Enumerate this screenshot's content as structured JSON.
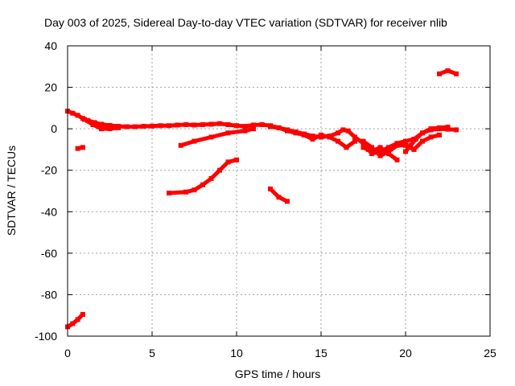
{
  "chart_data": {
    "type": "scatter",
    "title": "Day 003 of 2025, Sidereal Day-to-day VTEC variation (SDTVAR) for receiver nlib",
    "xlabel": "GPS time / hours",
    "ylabel": "SDTVAR / TECUs",
    "xlim": [
      0,
      25
    ],
    "ylim": [
      -100,
      40
    ],
    "xticks": [
      0,
      5,
      10,
      15,
      20,
      25
    ],
    "yticks": [
      -100,
      -80,
      -60,
      -40,
      -20,
      0,
      20,
      40
    ],
    "grid": true,
    "series_color": "#ff0000",
    "series": [
      {
        "name": "arc-1",
        "points": [
          [
            0,
            8.5
          ],
          [
            0.3,
            7.5
          ],
          [
            0.6,
            6.5
          ],
          [
            0.9,
            5
          ],
          [
            1.2,
            4
          ],
          [
            1.6,
            3
          ],
          [
            2,
            2.2
          ],
          [
            2.5,
            1.6
          ],
          [
            3,
            1.2
          ],
          [
            3.5,
            1
          ],
          [
            4,
            1
          ],
          [
            4.5,
            1.2
          ],
          [
            5,
            1.3
          ],
          [
            5.5,
            1.5
          ],
          [
            6,
            1.5
          ],
          [
            6.5,
            1.8
          ],
          [
            7,
            2
          ],
          [
            7.5,
            1.8
          ],
          [
            8,
            2
          ],
          [
            8.5,
            2.2
          ],
          [
            9,
            2.5
          ],
          [
            9.5,
            2
          ],
          [
            10,
            1.5
          ],
          [
            10.5,
            1.2
          ],
          [
            11,
            1.8
          ],
          [
            11.5,
            2
          ],
          [
            12,
            1.5
          ],
          [
            12.5,
            0.5
          ],
          [
            13,
            -0.5
          ],
          [
            13.5,
            -1.5
          ],
          [
            14,
            -2.5
          ],
          [
            14.5,
            -3.5
          ],
          [
            15,
            -4
          ],
          [
            15.5,
            -3.5
          ],
          [
            16,
            -2
          ],
          [
            16.3,
            -0.5
          ],
          [
            16.6,
            -1
          ],
          [
            17,
            -4
          ],
          [
            17.5,
            -7
          ],
          [
            17.8,
            -10
          ],
          [
            18,
            -12
          ],
          [
            18.5,
            -11
          ],
          [
            19,
            -9
          ],
          [
            19.5,
            -7
          ],
          [
            20,
            -6
          ],
          [
            20.5,
            -5
          ],
          [
            21,
            -2
          ],
          [
            21.5,
            -0.5
          ],
          [
            22,
            0
          ],
          [
            22.5,
            -0.2
          ],
          [
            23,
            -0.5
          ]
        ]
      },
      {
        "name": "arc-2",
        "points": [
          [
            1,
            4.5
          ],
          [
            1.5,
            2
          ],
          [
            2,
            0
          ],
          [
            2.5,
            0
          ],
          [
            3,
            0.5
          ]
        ]
      },
      {
        "name": "arc-3",
        "points": [
          [
            12,
            1
          ],
          [
            12.5,
            0.5
          ],
          [
            13,
            -1
          ],
          [
            13.5,
            -2
          ],
          [
            14,
            -3
          ],
          [
            14.5,
            -5
          ],
          [
            15,
            -3
          ],
          [
            15.5,
            -4
          ],
          [
            16,
            -6
          ],
          [
            16.5,
            -9
          ],
          [
            17,
            -6
          ]
        ]
      },
      {
        "name": "arc-4",
        "points": [
          [
            17.5,
            -6
          ],
          [
            18,
            -9
          ],
          [
            18.5,
            -13
          ],
          [
            19,
            -11
          ],
          [
            19.5,
            -8
          ],
          [
            20,
            -8
          ],
          [
            20.5,
            -10
          ],
          [
            21,
            -6
          ],
          [
            21.5,
            -4
          ],
          [
            22,
            -3
          ]
        ]
      },
      {
        "name": "arc-5",
        "points": [
          [
            17.5,
            -9
          ],
          [
            18,
            -11
          ],
          [
            18.5,
            -9
          ],
          [
            19,
            -12
          ],
          [
            19.5,
            -15
          ]
        ]
      },
      {
        "name": "arc-6",
        "points": [
          [
            20,
            -11
          ],
          [
            20.3,
            -8
          ],
          [
            20.6,
            -5
          ],
          [
            21,
            -2
          ],
          [
            21.5,
            0
          ],
          [
            22,
            0.5
          ],
          [
            22.5,
            0.8
          ]
        ]
      },
      {
        "name": "arc-7",
        "points": [
          [
            6.7,
            -8
          ],
          [
            7.5,
            -6
          ],
          [
            8.5,
            -4
          ],
          [
            9.5,
            -2
          ],
          [
            10.5,
            -1
          ],
          [
            11,
            0
          ]
        ]
      },
      {
        "name": "arc-8",
        "points": [
          [
            6,
            -31
          ],
          [
            7,
            -30.5
          ],
          [
            7.5,
            -29.5
          ],
          [
            8,
            -27
          ],
          [
            8.5,
            -24
          ],
          [
            9,
            -20
          ],
          [
            9.5,
            -16
          ],
          [
            10,
            -15
          ]
        ]
      },
      {
        "name": "arc-9",
        "points": [
          [
            12,
            -29
          ],
          [
            12.5,
            -33
          ],
          [
            13,
            -35
          ]
        ]
      },
      {
        "name": "arc-10",
        "points": [
          [
            0.6,
            -9.5
          ],
          [
            0.9,
            -9
          ]
        ]
      },
      {
        "name": "arc-11",
        "points": [
          [
            0,
            -95.5
          ],
          [
            0.3,
            -94
          ],
          [
            0.6,
            -92
          ],
          [
            0.9,
            -89.5
          ]
        ]
      },
      {
        "name": "arc-12",
        "points": [
          [
            22,
            26.5
          ],
          [
            22.5,
            28
          ],
          [
            23,
            26.5
          ]
        ]
      }
    ]
  }
}
